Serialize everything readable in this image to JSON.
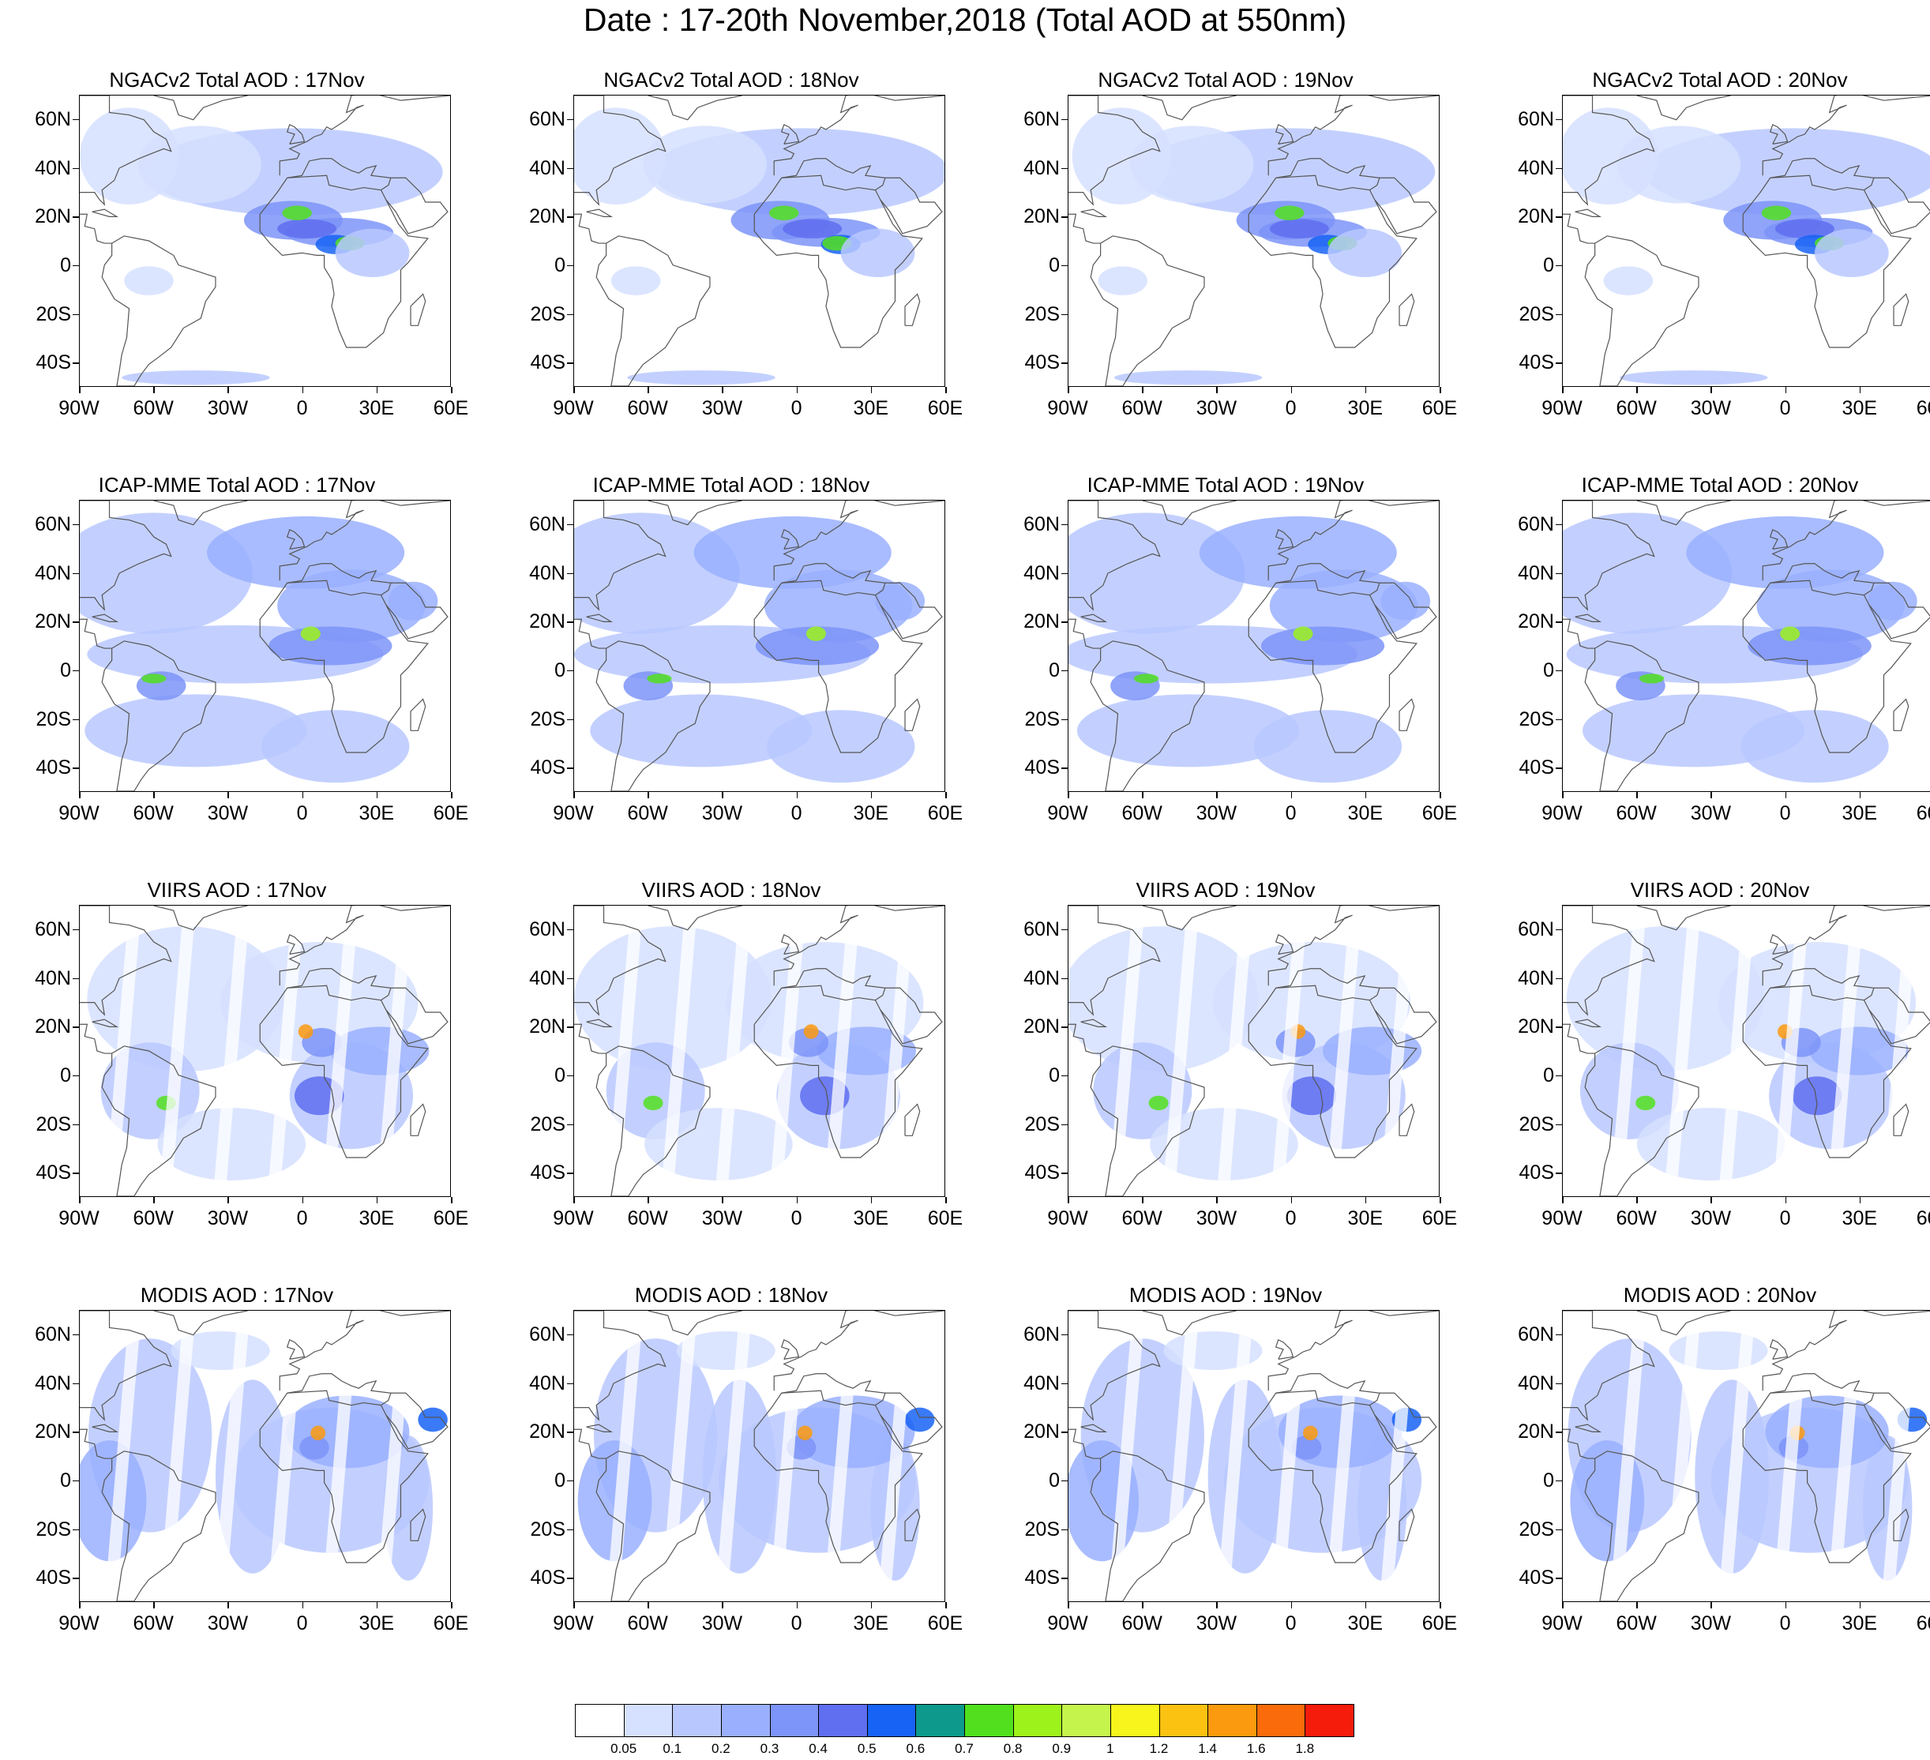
{
  "figure_title": "Date : 17-20th November,2018 (Total AOD at 550nm)",
  "axes": {
    "lat_labels": [
      "60N",
      "40N",
      "20N",
      "0",
      "20S",
      "40S"
    ],
    "lat_values": [
      60,
      40,
      20,
      0,
      -20,
      -40
    ],
    "lon_labels": [
      "90W",
      "60W",
      "30W",
      "0",
      "30E",
      "60E"
    ],
    "lon_values": [
      -90,
      -60,
      -30,
      0,
      30,
      60
    ],
    "lat_range": [
      -50,
      70
    ],
    "lon_range": [
      -90,
      60
    ]
  },
  "rows": [
    {
      "name": "ngac",
      "titles": [
        "NGACv2 Total AOD : 17Nov",
        "NGACv2 Total AOD : 18Nov",
        "NGACv2 Total AOD : 19Nov",
        "NGACv2 Total AOD : 20Nov"
      ]
    },
    {
      "name": "icap",
      "titles": [
        "ICAP-MME Total AOD : 17Nov",
        "ICAP-MME Total AOD : 18Nov",
        "ICAP-MME Total AOD : 19Nov",
        "ICAP-MME Total AOD : 20Nov"
      ]
    },
    {
      "name": "viirs",
      "titles": [
        "VIIRS AOD : 17Nov",
        "VIIRS AOD : 18Nov",
        "VIIRS AOD : 19Nov",
        "VIIRS AOD : 20Nov"
      ]
    },
    {
      "name": "modis",
      "titles": [
        "MODIS AOD : 17Nov",
        "MODIS AOD : 18Nov",
        "MODIS AOD : 19Nov",
        "MODIS AOD : 20Nov"
      ]
    }
  ],
  "colorbar": {
    "labels": [
      "0.05",
      "0.1",
      "0.2",
      "0.3",
      "0.4",
      "0.5",
      "0.6",
      "0.7",
      "0.8",
      "0.9",
      "1",
      "1.2",
      "1.4",
      "1.6",
      "1.8"
    ],
    "colors": [
      "#ffffff",
      "#d6e0ff",
      "#b8c8ff",
      "#9ab0ff",
      "#7d94f8",
      "#5f6ff0",
      "#1763f5",
      "#0d9a8c",
      "#52e01e",
      "#9ef21c",
      "#c5f54c",
      "#f7f51c",
      "#fbc212",
      "#fb9a0e",
      "#f96b0b",
      "#f51c0c"
    ]
  },
  "palette": {
    "coast": "#555555",
    "light": "#d6e0ff",
    "mid": "#b8c8ff",
    "strong": "#9ab0ff",
    "deep": "#7d94f8",
    "deeper": "#5f6ff0",
    "blue": "#1763f5",
    "green": "#52e01e",
    "lime": "#9ef21c",
    "yellow": "#f7f51c",
    "orange": "#fb9a0e",
    "red": "#f51c0c"
  }
}
